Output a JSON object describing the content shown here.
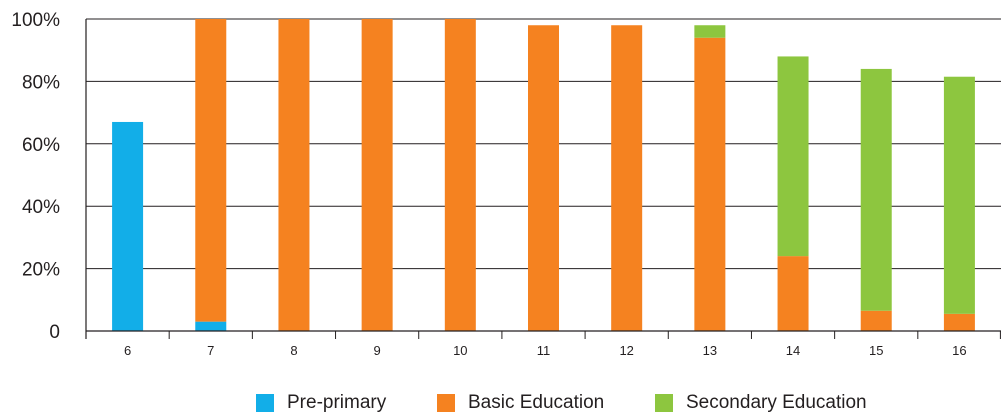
{
  "chart_data": {
    "type": "bar",
    "stacked": true,
    "categories": [
      "6",
      "7",
      "8",
      "9",
      "10",
      "11",
      "12",
      "13",
      "14",
      "15",
      "16"
    ],
    "y_tick_labels": [
      "0",
      "20%",
      "40%",
      "60%",
      "80%",
      "100%"
    ],
    "ylim": [
      0,
      100
    ],
    "grid": true,
    "legend_position": "bottom",
    "series": [
      {
        "name": "Pre-primary",
        "color": "#12aee8",
        "values": [
          67,
          3,
          0,
          0,
          0,
          0,
          0,
          0,
          0,
          0,
          0
        ]
      },
      {
        "name": "Basic Education",
        "color": "#f58220",
        "values": [
          0,
          97,
          100,
          100,
          100,
          98,
          98,
          94,
          24,
          6.5,
          5.5
        ]
      },
      {
        "name": "Secondary Education",
        "color": "#8dc63f",
        "values": [
          0,
          0,
          0,
          0,
          0,
          0,
          0,
          4,
          64,
          77.5,
          76
        ]
      }
    ]
  }
}
